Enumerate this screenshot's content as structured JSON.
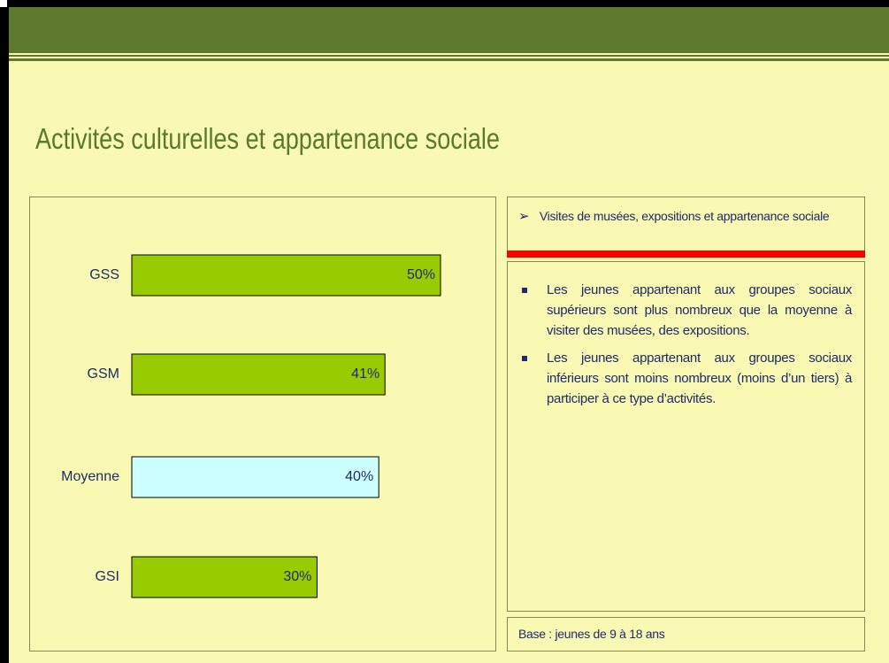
{
  "title": "Activités culturelles et appartenance sociale",
  "panel": {
    "heading": "Visites de musées, expositions et appartenance sociale",
    "bullets": [
      "Les jeunes appartenant aux groupes sociaux supérieurs sont plus nombreux que la moyenne à visiter des musées, des expositions.",
      "Les jeunes appartenant aux groupes sociaux inférieurs sont moins nombreux (moins d’un tiers) à participer à ce type d’activités."
    ],
    "footer": "Base : jeunes de 9 à 18 ans"
  },
  "chart_data": {
    "type": "bar",
    "orientation": "horizontal",
    "categories": [
      "GSS",
      "GSM",
      "Moyenne",
      "GSI"
    ],
    "values": [
      50,
      41,
      40,
      30
    ],
    "value_labels": [
      "50%",
      "41%",
      "40%",
      "30%"
    ],
    "colors": [
      "#99cc00",
      "#99cc00",
      "#ccffff",
      "#99cc00"
    ]
  }
}
